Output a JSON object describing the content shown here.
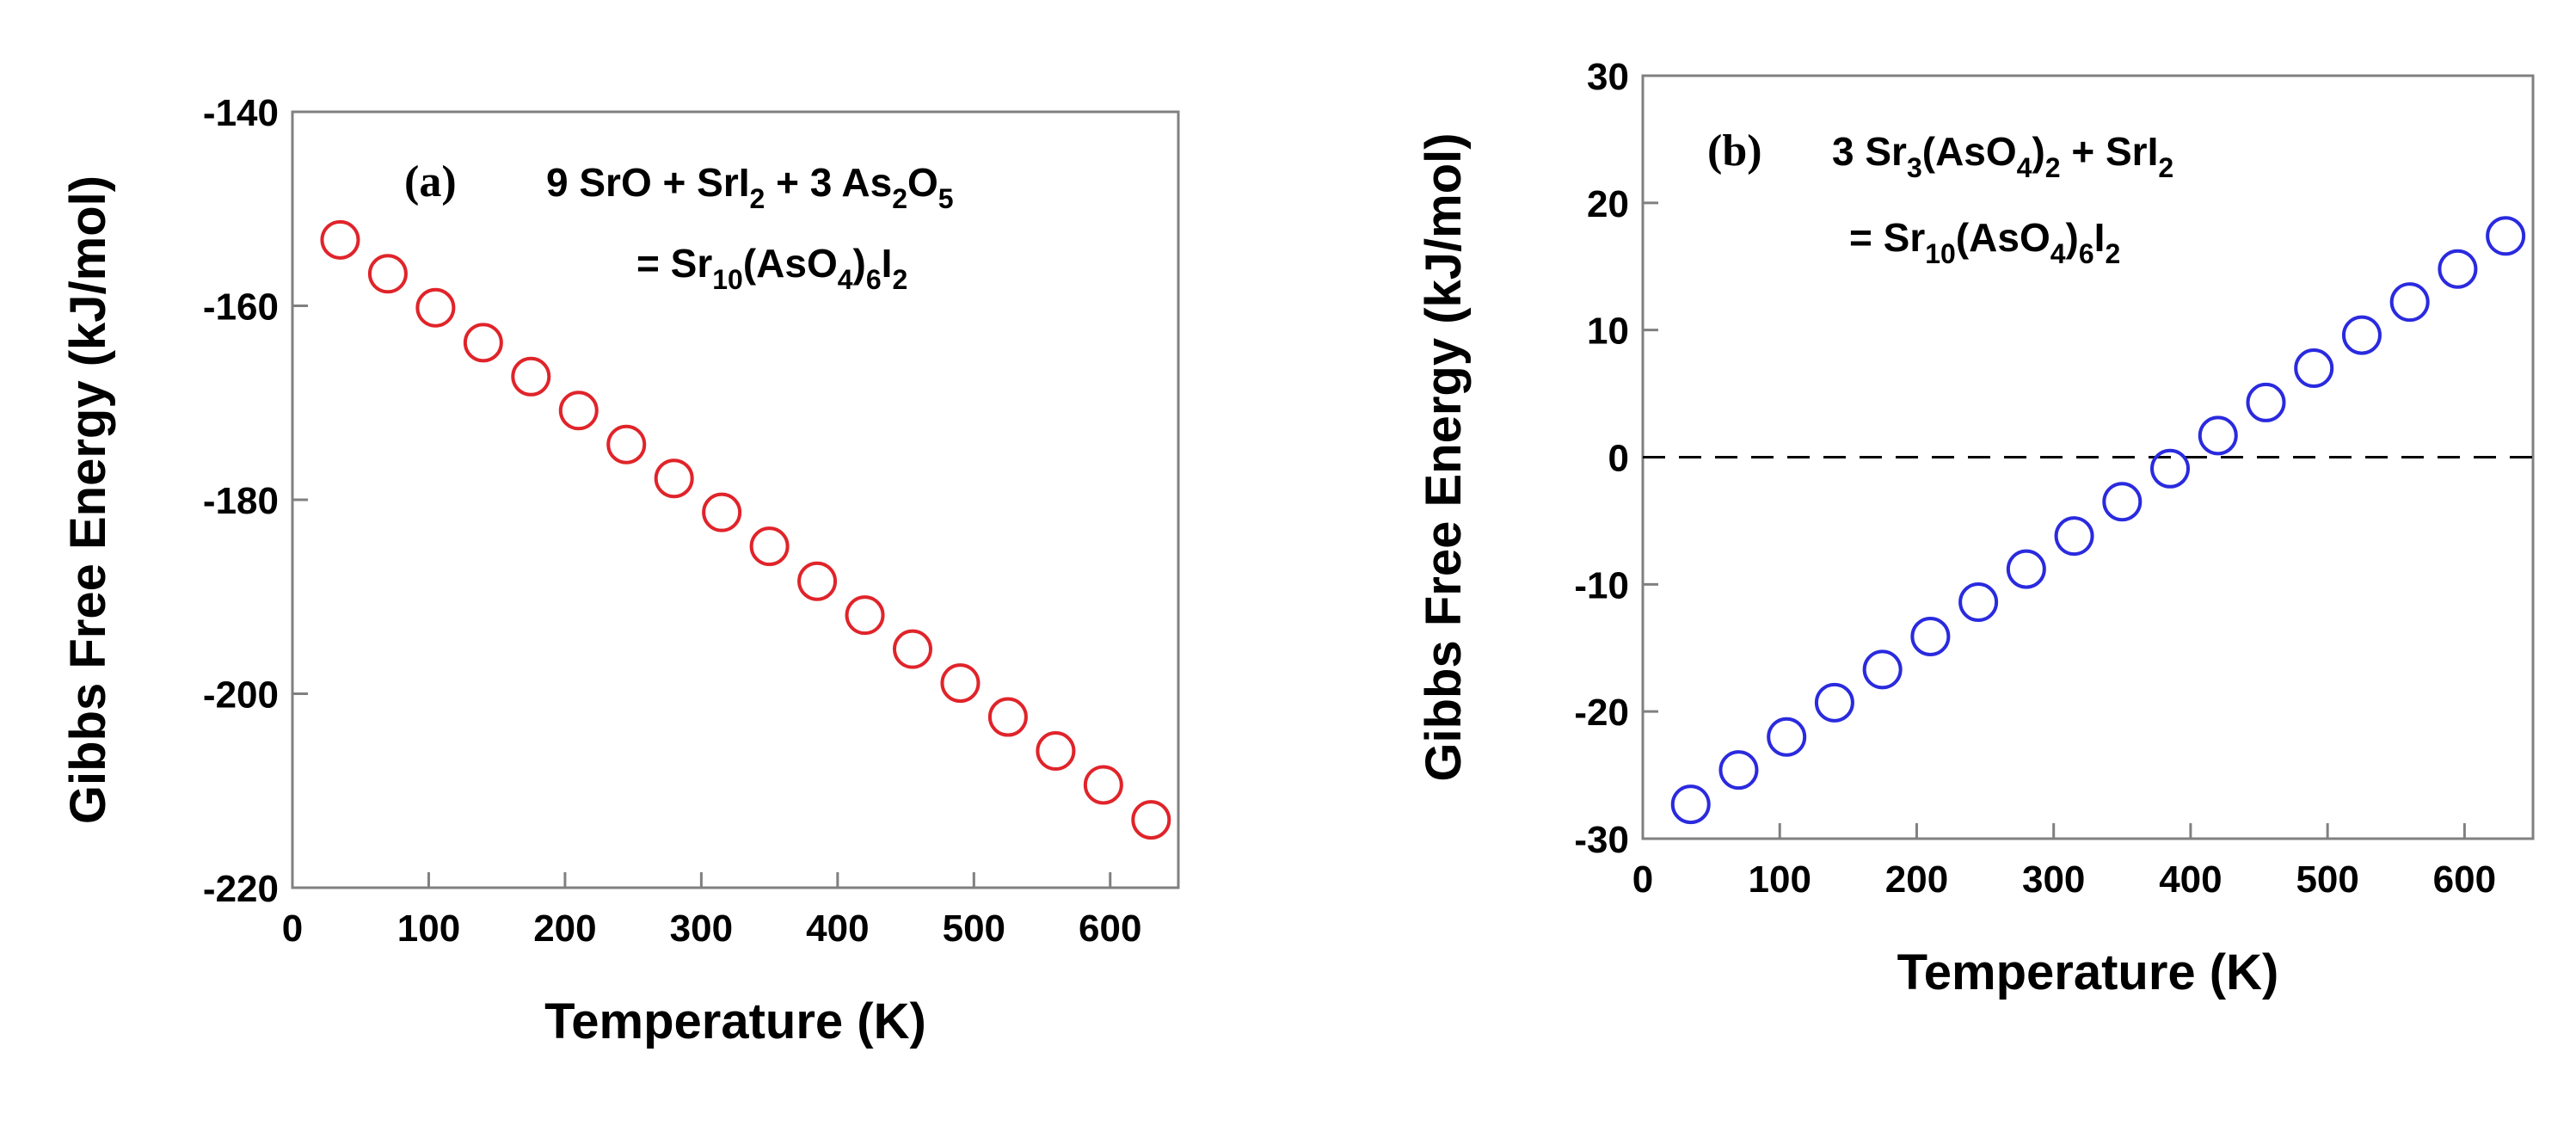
{
  "chart_data": [
    {
      "type": "scatter",
      "panel_label": "(a)",
      "equation": {
        "line1": [
          {
            "t": "9 SrO + SrI"
          },
          {
            "t": "2",
            "sub": true
          },
          {
            "t": " + 3 As"
          },
          {
            "t": "2",
            "sub": true
          },
          {
            "t": "O"
          },
          {
            "t": "5",
            "sub": true
          }
        ],
        "line2": [
          {
            "t": "= Sr"
          },
          {
            "t": "10",
            "sub": true
          },
          {
            "t": "(AsO"
          },
          {
            "t": "4",
            "sub": true
          },
          {
            "t": ")"
          },
          {
            "t": "6",
            "sub": true
          },
          {
            "t": "I"
          },
          {
            "t": "2",
            "sub": true
          }
        ]
      },
      "xlabel": "Temperature (K)",
      "ylabel": "Gibbs Free Energy (kJ/mol)",
      "xlim": [
        0,
        650
      ],
      "ylim": [
        -220,
        -140
      ],
      "xticks": [
        0,
        100,
        200,
        300,
        400,
        500,
        600
      ],
      "yticks": [
        -220,
        -200,
        -180,
        -160,
        -140
      ],
      "marker": "open-circle",
      "color": "#e0242a",
      "zero_line": false,
      "series": [
        {
          "name": "Gibbs free energy",
          "x": [
            35,
            70,
            105,
            140,
            175,
            210,
            245,
            280,
            315,
            350,
            385,
            420,
            455,
            490,
            525,
            560,
            595,
            630
          ],
          "y": [
            -153.2,
            -156.7,
            -160.2,
            -163.8,
            -167.3,
            -170.8,
            -174.3,
            -177.8,
            -181.3,
            -184.8,
            -188.4,
            -191.9,
            -195.4,
            -198.9,
            -202.4,
            -205.9,
            -209.4,
            -213.0
          ]
        }
      ]
    },
    {
      "type": "scatter",
      "panel_label": "(b)",
      "equation": {
        "line1": [
          {
            "t": "3 Sr"
          },
          {
            "t": "3",
            "sub": true
          },
          {
            "t": "(AsO"
          },
          {
            "t": "4",
            "sub": true
          },
          {
            "t": ")"
          },
          {
            "t": "2",
            "sub": true
          },
          {
            "t": " + SrI"
          },
          {
            "t": "2",
            "sub": true
          }
        ],
        "line2": [
          {
            "t": "=  Sr"
          },
          {
            "t": "10",
            "sub": true
          },
          {
            "t": "(AsO"
          },
          {
            "t": "4",
            "sub": true
          },
          {
            "t": ")"
          },
          {
            "t": "6",
            "sub": true
          },
          {
            "t": "I"
          },
          {
            "t": "2",
            "sub": true
          }
        ]
      },
      "xlabel": "Temperature (K)",
      "ylabel": "Gibbs Free Energy (kJ/mol)",
      "xlim": [
        0,
        650
      ],
      "ylim": [
        -30,
        30
      ],
      "xticks": [
        0,
        100,
        200,
        300,
        400,
        500,
        600
      ],
      "yticks": [
        -30,
        -20,
        -10,
        0,
        10,
        20,
        30
      ],
      "marker": "open-circle",
      "color": "#2a2adf",
      "zero_line": true,
      "series": [
        {
          "name": "Gibbs free energy",
          "x": [
            35,
            70,
            105,
            140,
            175,
            210,
            245,
            280,
            315,
            350,
            385,
            420,
            455,
            490,
            525,
            560,
            595,
            630
          ],
          "y": [
            -27.3,
            -24.6,
            -22.0,
            -19.3,
            -16.7,
            -14.1,
            -11.4,
            -8.8,
            -6.2,
            -3.5,
            -0.9,
            1.7,
            4.3,
            7.0,
            9.6,
            12.2,
            14.8,
            17.4
          ]
        }
      ]
    }
  ]
}
